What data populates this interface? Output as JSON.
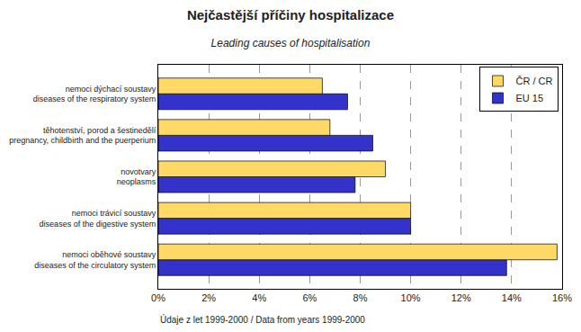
{
  "chart_data": {
    "type": "bar",
    "orientation": "horizontal",
    "title": "Nejčastější příčiny hospitalizace",
    "subtitle": "Leading causes of hospitalisation",
    "annotations": [
      "Údaje z let 1999-2000 / Data from years 1999-2000"
    ],
    "categories": [
      "nemoci oběhové soustavy\ndiseases of the circulatory system",
      "nemoci trávicí soustavy\ndiseases of the digestive system",
      "novotvary\nneoplasms",
      "těhotenství, porod a šestinedělí\npregnancy, childbirth and the puerperium",
      "nemoci dýchací soustavy\ndiseases of the respiratory system"
    ],
    "series": [
      {
        "name": "ČR / CR",
        "color": "#FFD966",
        "values": [
          15.8,
          10.0,
          9.0,
          6.8,
          6.5
        ]
      },
      {
        "name": "EU 15",
        "color": "#3333CC",
        "values": [
          13.8,
          10.0,
          7.8,
          8.5,
          7.5
        ]
      }
    ],
    "xlim": [
      0,
      16
    ],
    "xticks": [
      {
        "value": 0,
        "label": "0%"
      },
      {
        "value": 2,
        "label": "2%"
      },
      {
        "value": 4,
        "label": "4%"
      },
      {
        "value": 6,
        "label": "6%"
      },
      {
        "value": 8,
        "label": "8%"
      },
      {
        "value": 10,
        "label": "10%"
      },
      {
        "value": 12,
        "label": "12%"
      },
      {
        "value": 14,
        "label": "14%"
      },
      {
        "value": 16,
        "label": "16%"
      }
    ],
    "grid": true,
    "legend": "upper right"
  }
}
